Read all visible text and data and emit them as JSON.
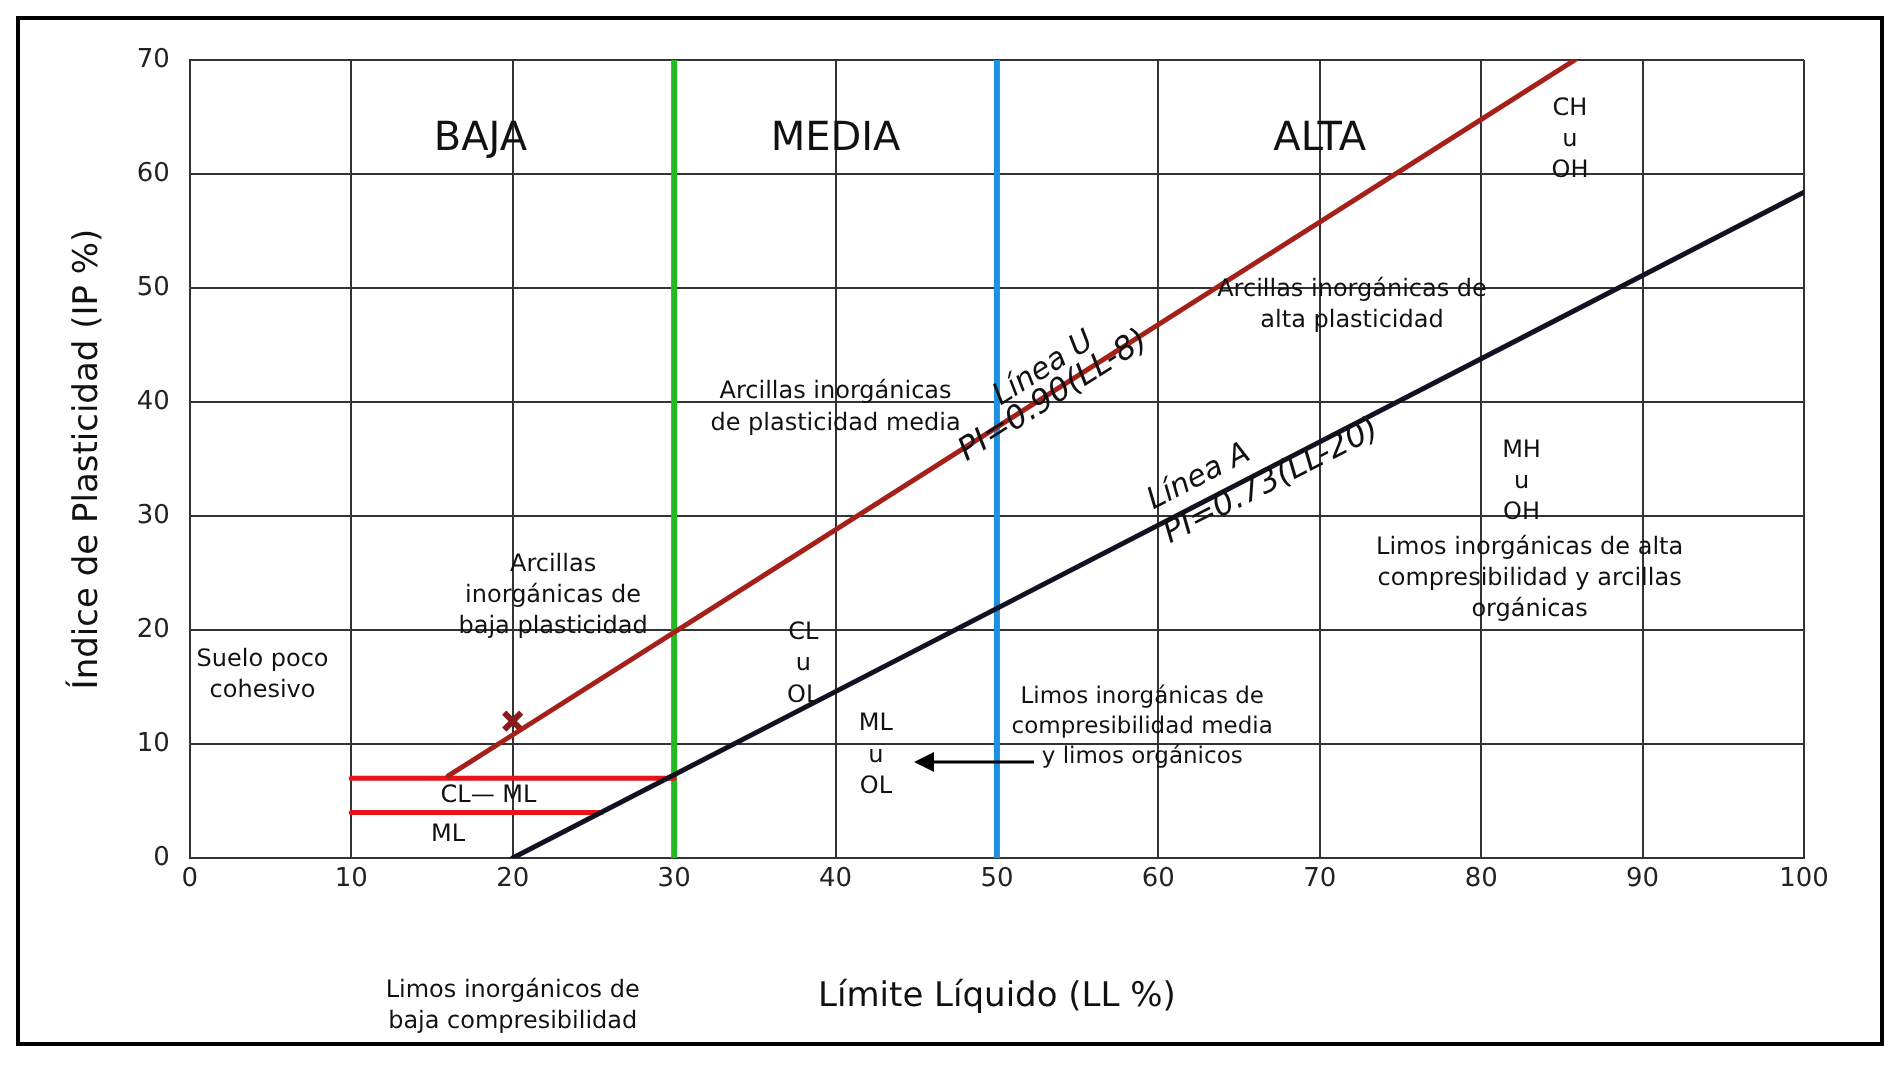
{
  "chart_data": {
    "type": "line",
    "xlabel": "Límite Líquido (LL %)",
    "ylabel": "Índice de Plasticidad (IP %)",
    "xlim": [
      0,
      100
    ],
    "xticks": [
      0,
      10,
      20,
      30,
      40,
      50,
      60,
      70,
      80,
      90,
      100
    ],
    "ylim": [
      0,
      70
    ],
    "yticks": [
      0,
      10,
      20,
      30,
      40,
      50,
      60,
      70
    ],
    "grid": true,
    "legend": false,
    "marker": "none",
    "line_style": "solid",
    "series": [
      {
        "name": "Línea U",
        "color": "#a52019",
        "x": [
          16,
          85.8
        ],
        "values": [
          7.2,
          70
        ]
      },
      {
        "name": "Línea A",
        "color": "#111122",
        "x": [
          20,
          100
        ],
        "values": [
          0,
          58.4
        ]
      },
      {
        "color": "#e8141c",
        "x": [
          10,
          30
        ],
        "values": [
          7,
          7
        ]
      },
      {
        "color": "#e8141c",
        "x": [
          10,
          25.5
        ],
        "values": [
          4,
          4
        ]
      },
      {
        "type": "scatter",
        "marker": "cross",
        "color": "#8b1a1a",
        "x": [
          20
        ],
        "values": [
          12
        ]
      }
    ],
    "ref_lines": [
      {
        "axis": "x",
        "value": 30,
        "color": "#22bb22"
      },
      {
        "axis": "x",
        "value": 50,
        "color": "#1e90e0"
      }
    ],
    "annotations": [
      "BAJA",
      "MEDIA",
      "ALTA",
      "Arcillas inorgánicas\nde plasticidad media",
      "Arcillas\ninorgánicas de\nbaja plasticidad",
      "Suelo poco\ncohesivo",
      "CL\nu\nOL",
      "ML\nu\nOL",
      "CL— ML",
      "ML",
      "Limos inorgánicas de\ncompresibilidad media\ny limos orgánicos",
      "CH\nu\nOH",
      "Arcillas inorgánicas de\nalta plasticidad",
      "MH\nu\nOH",
      "Limos inorgánicas de alta\ncompresibilidad y arcillas\norgánicas",
      "PI=0.90(LL-8)",
      "PI=0.73(LL-20)",
      "Limos inorgánicos de\nbaja compresibilidad"
    ]
  }
}
